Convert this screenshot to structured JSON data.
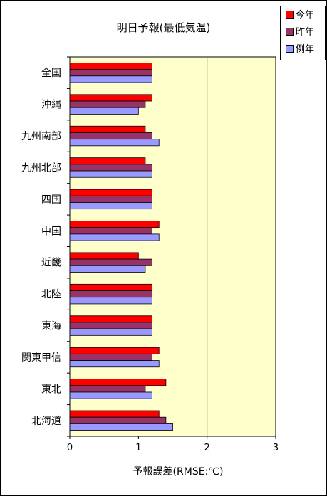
{
  "chart_data": {
    "type": "bar",
    "orientation": "horizontal",
    "title": "明日予報(最低気温)",
    "xlabel": "予報誤差(RMSE:℃)",
    "ylabel": "",
    "xlim": [
      0,
      3
    ],
    "xticks": [
      "0",
      "1",
      "2",
      "3"
    ],
    "categories": [
      "全国",
      "沖縄",
      "九州南部",
      "九州北部",
      "四国",
      "中国",
      "近畿",
      "北陸",
      "東海",
      "関東甲信",
      "東北",
      "北海道"
    ],
    "series": [
      {
        "name": "今年",
        "color": "#ff0000",
        "values": [
          1.2,
          1.2,
          1.1,
          1.1,
          1.2,
          1.3,
          1.0,
          1.2,
          1.2,
          1.3,
          1.4,
          1.3
        ]
      },
      {
        "name": "昨年",
        "color": "#993366",
        "values": [
          1.2,
          1.1,
          1.2,
          1.2,
          1.2,
          1.2,
          1.2,
          1.2,
          1.2,
          1.2,
          1.1,
          1.4
        ]
      },
      {
        "name": "例年",
        "color": "#9999ff",
        "values": [
          1.2,
          1.0,
          1.3,
          1.2,
          1.2,
          1.3,
          1.1,
          1.2,
          1.2,
          1.3,
          1.2,
          1.5
        ]
      }
    ],
    "plot_background": "#ffffcc",
    "gridlines": "vertical at 2",
    "legend_position": "top-right"
  }
}
